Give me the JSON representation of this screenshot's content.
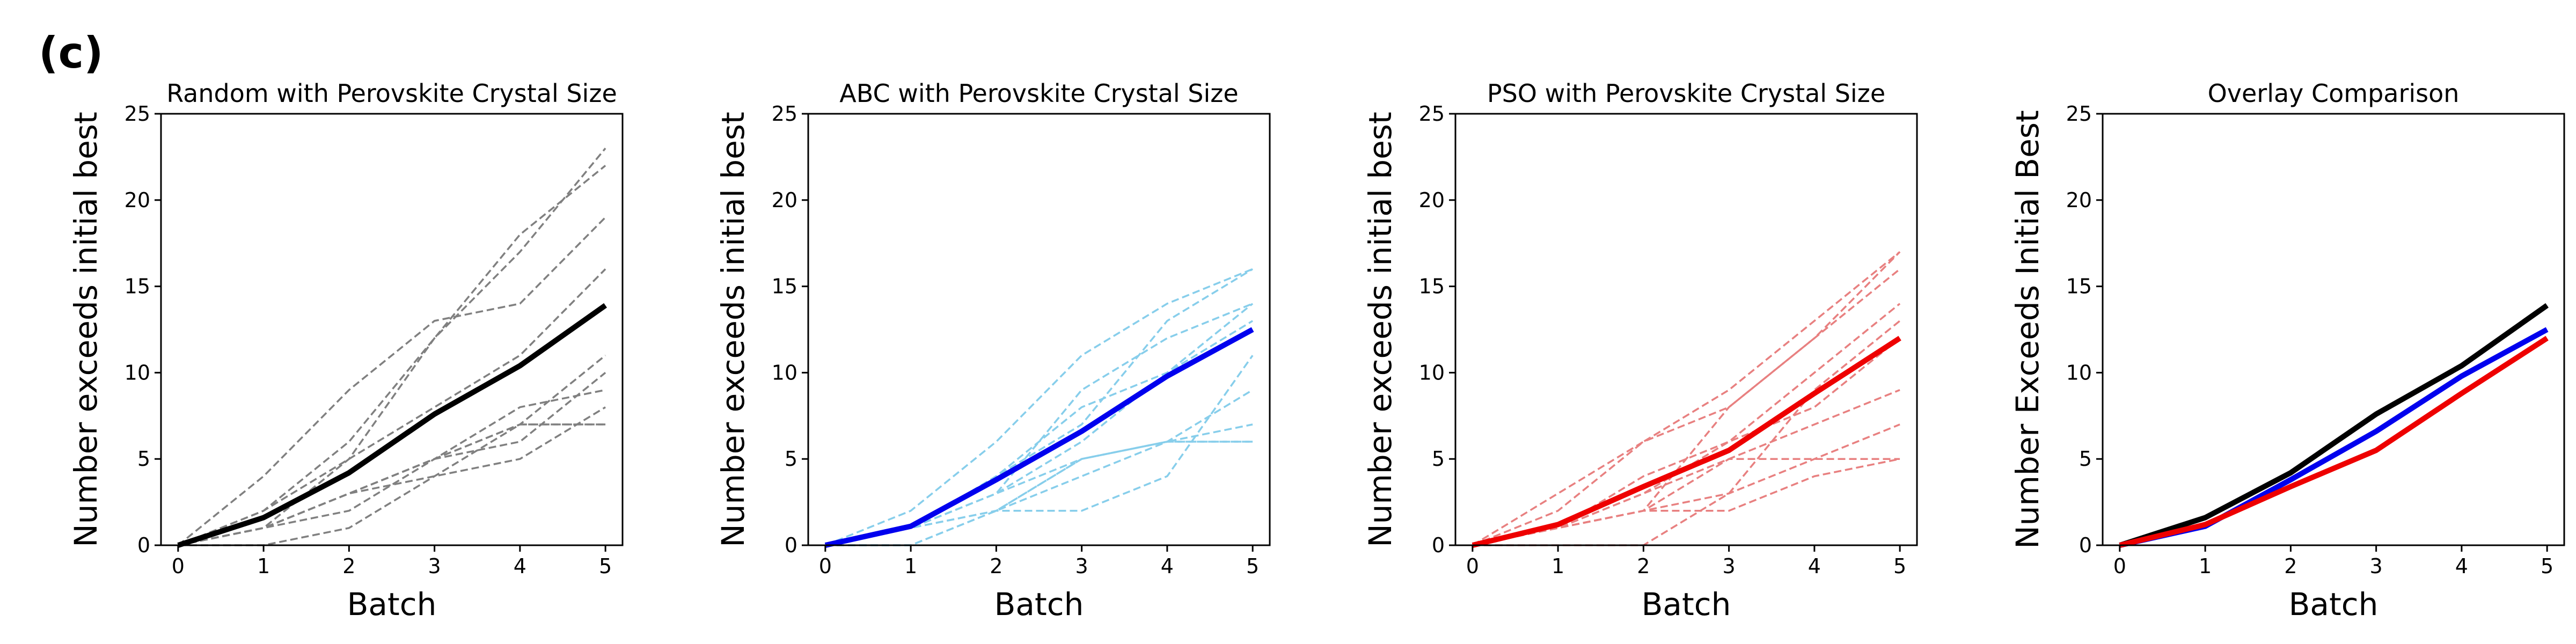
{
  "panel_label": "(c)",
  "chart_data": [
    {
      "type": "line",
      "title": "Random with Perovskite Crystal Size",
      "xlabel": "Batch",
      "ylabel": "Number exceeds initial best",
      "xlim": [
        -0.2,
        5.2
      ],
      "ylim": [
        0,
        25
      ],
      "xticks": [
        "0",
        "1",
        "2",
        "3",
        "4",
        "5"
      ],
      "yticks": [
        "0",
        "5",
        "10",
        "15",
        "20",
        "25"
      ],
      "x": [
        0,
        1,
        2,
        3,
        4,
        5
      ],
      "grid": false,
      "runs_color": "#808080",
      "runs": [
        [
          0,
          1,
          3,
          5,
          7,
          11
        ],
        [
          0,
          2,
          6,
          12,
          18,
          22
        ],
        [
          0,
          1,
          5,
          12,
          17,
          23
        ],
        [
          0,
          4,
          9,
          13,
          14,
          19
        ],
        [
          0,
          1,
          3,
          5,
          6,
          10
        ],
        [
          0,
          1,
          2,
          5,
          8,
          9
        ],
        [
          0,
          1,
          3,
          4,
          5,
          8
        ],
        [
          0,
          2,
          5,
          8,
          11,
          16
        ],
        [
          0,
          1,
          3,
          5,
          7,
          7
        ],
        [
          0,
          0,
          1,
          4,
          7,
          7
        ]
      ],
      "mean": {
        "color": "#000000",
        "values": [
          0,
          1.6,
          4.2,
          7.6,
          10.4,
          13.9
        ]
      }
    },
    {
      "type": "line",
      "title": "ABC with Perovskite Crystal Size",
      "xlabel": "Batch",
      "ylabel": "Number exceeds initial best",
      "xlim": [
        -0.2,
        5.2
      ],
      "ylim": [
        0,
        25
      ],
      "xticks": [
        "0",
        "1",
        "2",
        "3",
        "4",
        "5"
      ],
      "yticks": [
        "0",
        "5",
        "10",
        "15",
        "20",
        "25"
      ],
      "x": [
        0,
        1,
        2,
        3,
        4,
        5
      ],
      "grid": false,
      "runs_color": "#87ceeb",
      "runs": [
        [
          0,
          1,
          4,
          7,
          13,
          16
        ],
        [
          0,
          2,
          6,
          11,
          14,
          16
        ],
        [
          0,
          1,
          3,
          9,
          12,
          14
        ],
        [
          0,
          1,
          4,
          8,
          10,
          13
        ],
        [
          0,
          1,
          3,
          5,
          6,
          7
        ],
        [
          0,
          1,
          2,
          5,
          6,
          6
        ],
        [
          0,
          0,
          2,
          4,
          6,
          9
        ],
        [
          0,
          1,
          2,
          2,
          4,
          11
        ],
        [
          0,
          1,
          3,
          6,
          10,
          14
        ],
        [
          0,
          0,
          2,
          5,
          6,
          6
        ]
      ],
      "mean": {
        "color": "#0000ee",
        "values": [
          0,
          1.1,
          3.8,
          6.6,
          9.8,
          12.5
        ]
      }
    },
    {
      "type": "line",
      "title": "PSO with Perovskite Crystal Size",
      "xlabel": "Batch",
      "ylabel": "Number exceeds initial best",
      "xlim": [
        -0.2,
        5.2
      ],
      "ylim": [
        0,
        25
      ],
      "xticks": [
        "0",
        "1",
        "2",
        "3",
        "4",
        "5"
      ],
      "yticks": [
        "0",
        "5",
        "10",
        "15",
        "20",
        "25"
      ],
      "x": [
        0,
        1,
        2,
        3,
        4,
        5
      ],
      "grid": false,
      "runs_color": "#e88080",
      "runs": [
        [
          0,
          2,
          6,
          9,
          13,
          17
        ],
        [
          0,
          3,
          6,
          8,
          12,
          17
        ],
        [
          0,
          1,
          2,
          8,
          12,
          16
        ],
        [
          0,
          1,
          3,
          6,
          10,
          14
        ],
        [
          0,
          1,
          3,
          5,
          7,
          9
        ],
        [
          0,
          1,
          2,
          3,
          5,
          7
        ],
        [
          0,
          1,
          2,
          2,
          4,
          5
        ],
        [
          0,
          0,
          0,
          3,
          9,
          13
        ],
        [
          0,
          1,
          2,
          5,
          5,
          5
        ],
        [
          0,
          1,
          4,
          6,
          8,
          12
        ]
      ],
      "mean": {
        "color": "#ee0000",
        "values": [
          0,
          1.2,
          3.4,
          5.5,
          8.8,
          12.0
        ]
      }
    },
    {
      "type": "line",
      "title": "Overlay Comparison",
      "xlabel": "Batch",
      "ylabel": "Number Exceeds Initial Best",
      "xlim": [
        -0.2,
        5.2
      ],
      "ylim": [
        0,
        25
      ],
      "xticks": [
        "0",
        "1",
        "2",
        "3",
        "4",
        "5"
      ],
      "yticks": [
        "0",
        "5",
        "10",
        "15",
        "20",
        "25"
      ],
      "x": [
        0,
        1,
        2,
        3,
        4,
        5
      ],
      "grid": false,
      "series": [
        {
          "color": "#000000",
          "values": [
            0,
            1.6,
            4.2,
            7.6,
            10.4,
            13.9
          ]
        },
        {
          "color": "#0000ee",
          "values": [
            0,
            1.1,
            3.8,
            6.6,
            9.8,
            12.5
          ]
        },
        {
          "color": "#ee0000",
          "values": [
            0,
            1.2,
            3.4,
            5.5,
            8.8,
            12.0
          ]
        }
      ]
    }
  ]
}
